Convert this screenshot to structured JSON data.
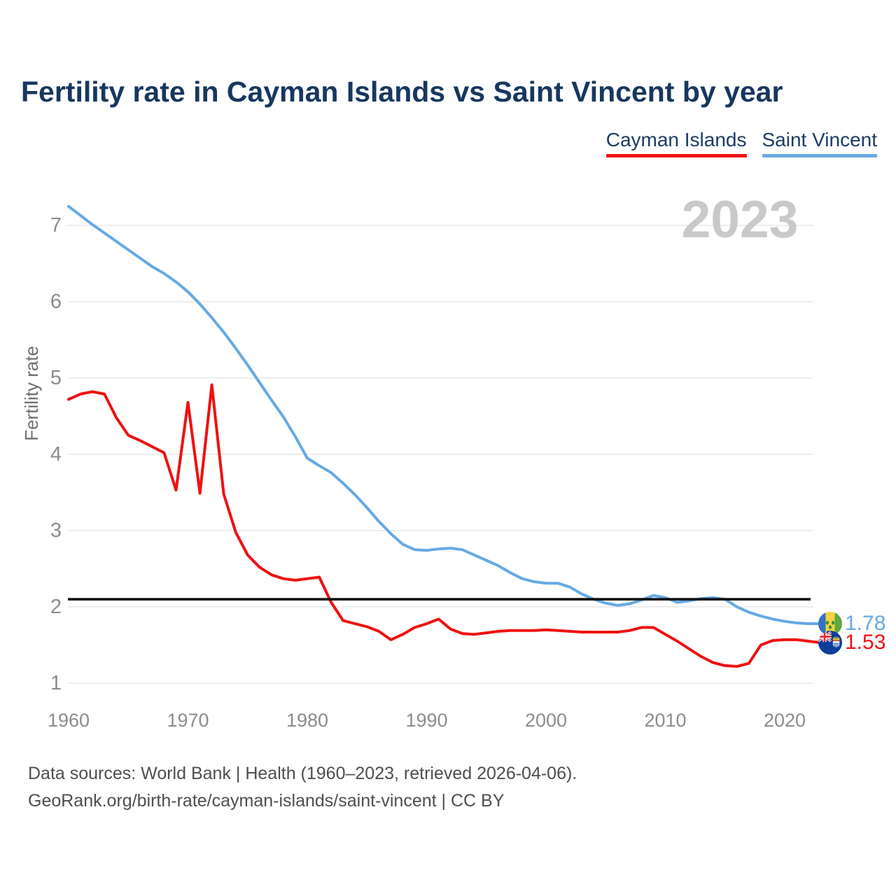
{
  "title": "Fertility rate in Cayman Islands vs Saint Vincent by year",
  "watermark": "2023",
  "legend": [
    {
      "label": "Cayman Islands",
      "color": "#ee1111"
    },
    {
      "label": "Saint Vincent",
      "color": "#6aabe6"
    }
  ],
  "end_labels": [
    {
      "series": "Saint Vincent",
      "value": "1.78",
      "flag_icon": "saint-vincent-flag-icon"
    },
    {
      "series": "Cayman Islands",
      "value": "1.53",
      "flag_icon": "cayman-islands-flag-icon"
    }
  ],
  "footer": {
    "line1": "Data sources: World Bank | Health (1960–2023, retrieved 2026-04-06).",
    "line2": "GeoRank.org/birth-rate/cayman-islands/saint-vincent | CC BY"
  },
  "chart_data": {
    "type": "line",
    "title": "Fertility rate in Cayman Islands vs Saint Vincent by year",
    "xlabel": "",
    "ylabel": "Fertility rate",
    "xlim": [
      1960,
      2023
    ],
    "ylim": [
      1,
      7.4
    ],
    "grid": true,
    "grid_color": "#e9e9e9",
    "x_ticks": [
      1960,
      1970,
      1980,
      1990,
      2000,
      2010,
      2020
    ],
    "y_ticks": [
      1,
      2,
      3,
      4,
      5,
      6,
      7
    ],
    "reference_line": {
      "value": 2.1,
      "color": "#111111"
    },
    "x": [
      1960,
      1961,
      1962,
      1963,
      1964,
      1965,
      1966,
      1967,
      1968,
      1969,
      1970,
      1971,
      1972,
      1973,
      1974,
      1975,
      1976,
      1977,
      1978,
      1979,
      1980,
      1981,
      1982,
      1983,
      1984,
      1985,
      1986,
      1987,
      1988,
      1989,
      1990,
      1991,
      1992,
      1993,
      1994,
      1995,
      1996,
      1997,
      1998,
      1999,
      2000,
      2001,
      2002,
      2003,
      2004,
      2005,
      2006,
      2007,
      2008,
      2009,
      2010,
      2011,
      2012,
      2013,
      2014,
      2015,
      2016,
      2017,
      2018,
      2019,
      2020,
      2021,
      2022,
      2023
    ],
    "series": [
      {
        "name": "Saint Vincent",
        "color": "#66a9e4",
        "values": [
          7.25,
          7.13,
          7.01,
          6.9,
          6.79,
          6.68,
          6.57,
          6.46,
          6.37,
          6.26,
          6.13,
          5.97,
          5.79,
          5.6,
          5.39,
          5.17,
          4.94,
          4.71,
          4.49,
          4.23,
          3.95,
          3.85,
          3.76,
          3.62,
          3.47,
          3.3,
          3.12,
          2.96,
          2.82,
          2.75,
          2.74,
          2.76,
          2.77,
          2.75,
          2.68,
          2.61,
          2.54,
          2.45,
          2.37,
          2.33,
          2.31,
          2.31,
          2.26,
          2.17,
          2.1,
          2.05,
          2.02,
          2.04,
          2.09,
          2.15,
          2.12,
          2.06,
          2.08,
          2.11,
          2.12,
          2.1,
          2.0,
          1.93,
          1.88,
          1.84,
          1.81,
          1.79,
          1.78,
          1.78
        ]
      },
      {
        "name": "Cayman Islands",
        "color": "#ee1111",
        "values": [
          4.72,
          4.79,
          4.82,
          4.79,
          4.48,
          4.25,
          4.18,
          4.1,
          4.02,
          3.53,
          4.68,
          3.49,
          4.91,
          3.48,
          2.98,
          2.68,
          2.52,
          2.42,
          2.37,
          2.35,
          2.37,
          2.39,
          2.06,
          1.82,
          1.78,
          1.74,
          1.68,
          1.57,
          1.64,
          1.73,
          1.78,
          1.84,
          1.71,
          1.65,
          1.64,
          1.66,
          1.68,
          1.69,
          1.69,
          1.69,
          1.7,
          1.69,
          1.68,
          1.67,
          1.67,
          1.67,
          1.67,
          1.69,
          1.73,
          1.73,
          1.64,
          1.55,
          1.45,
          1.35,
          1.27,
          1.23,
          1.22,
          1.26,
          1.5,
          1.56,
          1.57,
          1.57,
          1.55,
          1.53
        ]
      }
    ]
  }
}
